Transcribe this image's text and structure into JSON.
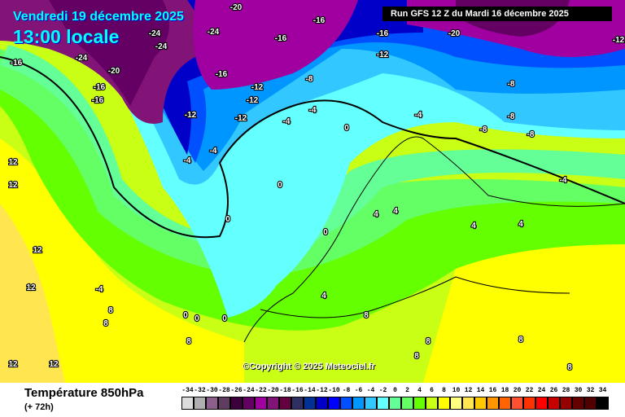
{
  "header": {
    "date": "Vendredi 19 décembre 2025",
    "time": "13:00 locale",
    "run": "Run GFS 12 Z du Mardi 16 décembre 2025"
  },
  "copyright": "©Copyright © 2025 Meteociel.fr",
  "footer": {
    "parameter": "Température 850hPa",
    "lead": "(+ 72h)"
  },
  "legend": {
    "labels": [
      "-34",
      "-32",
      "-30",
      "-28",
      "-26",
      "-24",
      "-22",
      "-20",
      "-18",
      "-16",
      "-14",
      "-12",
      "-10",
      "-8",
      "-6",
      "-4",
      "-2",
      "0",
      "2",
      "4",
      "6",
      "8",
      "10",
      "12",
      "14",
      "16",
      "18",
      "20",
      "22",
      "24",
      "26",
      "28",
      "30",
      "32",
      "34"
    ],
    "colors": [
      "#dcdcdc",
      "#b0b0b0",
      "#8c5f8c",
      "#603c60",
      "#3c003c",
      "#640064",
      "#a000a0",
      "#821478",
      "#640040",
      "#2f2f64",
      "#003296",
      "#0000c8",
      "#0000ff",
      "#0050ff",
      "#0096ff",
      "#32c8ff",
      "#64ffff",
      "#64ff96",
      "#64ff64",
      "#64ff00",
      "#c8ff14",
      "#ffff00",
      "#ffff80",
      "#ffe650",
      "#ffc800",
      "#ff9600",
      "#ff6400",
      "#ff5032",
      "#ff3200",
      "#ff0000",
      "#c80000",
      "#960000",
      "#640000",
      "#500000",
      "#000000"
    ]
  },
  "map_labels": [
    "-24",
    "-16",
    "-24",
    "-24",
    "-20",
    "-16",
    "-16",
    "-12",
    "-12",
    "-16",
    "-12",
    "-8",
    "-16",
    "-12",
    "-12",
    "-24",
    "-20",
    "-16",
    "-8",
    "-4",
    "-4",
    "-4",
    "-4",
    "0",
    "0",
    "0",
    "0",
    "-4",
    "-8",
    "-8",
    "-8",
    "-4",
    "4",
    "4",
    "4",
    "4",
    "12",
    "12",
    "12",
    "12",
    "8",
    "8",
    "8",
    "12",
    "12",
    "8",
    "8",
    "8",
    "8",
    "8",
    "4",
    "0",
    "0",
    "0",
    "-4",
    "-20",
    "-16",
    "-12"
  ]
}
